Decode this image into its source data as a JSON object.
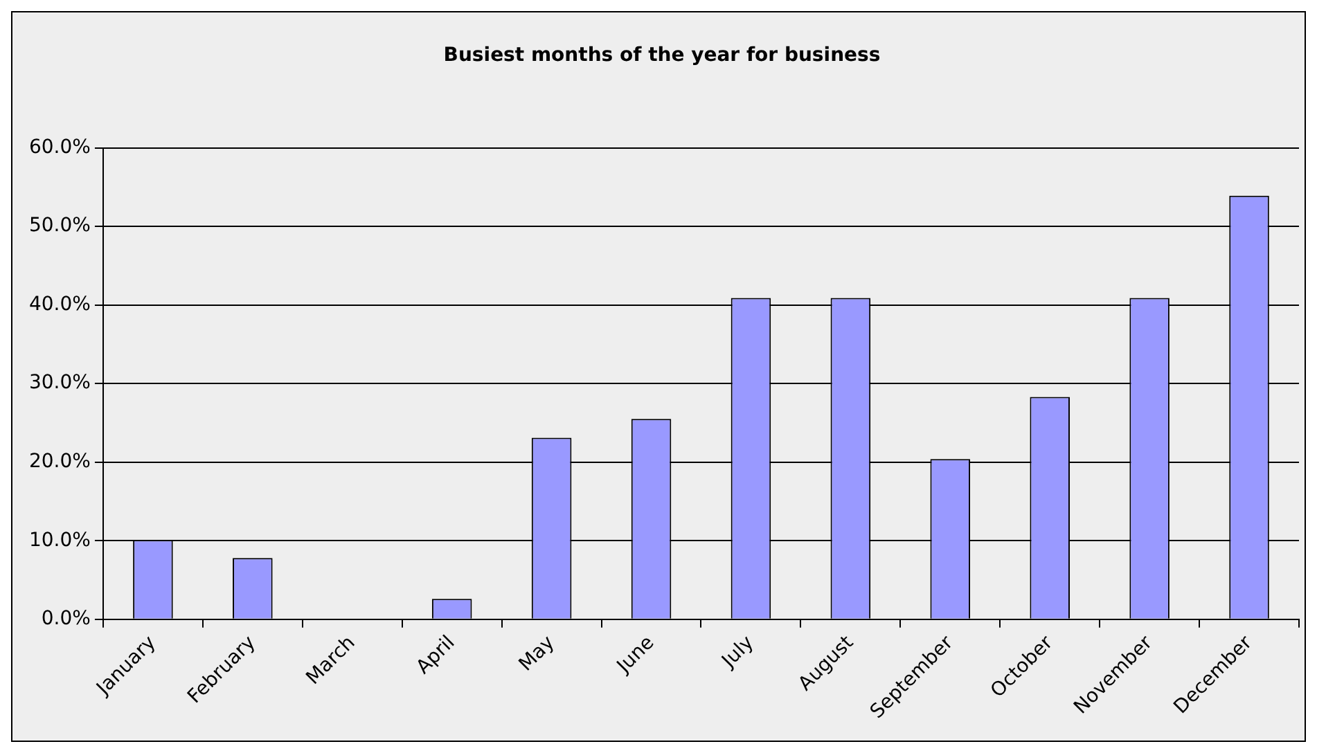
{
  "chart_data": {
    "type": "bar",
    "title": "Busiest months of the year for business",
    "categories": [
      "January",
      "February",
      "March",
      "April",
      "May",
      "June",
      "July",
      "August",
      "September",
      "October",
      "November",
      "December"
    ],
    "values": [
      10.1,
      7.8,
      0,
      2.6,
      23.1,
      25.5,
      40.9,
      40.9,
      20.4,
      28.3,
      40.9,
      53.9
    ],
    "color": "#9999ff",
    "ylim": [
      0,
      60
    ],
    "yticks": [
      {
        "value": 0,
        "label": "0.0%"
      },
      {
        "value": 10,
        "label": "10.0%"
      },
      {
        "value": 20,
        "label": "20.0%"
      },
      {
        "value": 30,
        "label": "30.0%"
      },
      {
        "value": 40,
        "label": "40.0%"
      },
      {
        "value": 50,
        "label": "50.0%"
      },
      {
        "value": 60,
        "label": "60.0%"
      }
    ],
    "grid": "y",
    "legend": false
  }
}
